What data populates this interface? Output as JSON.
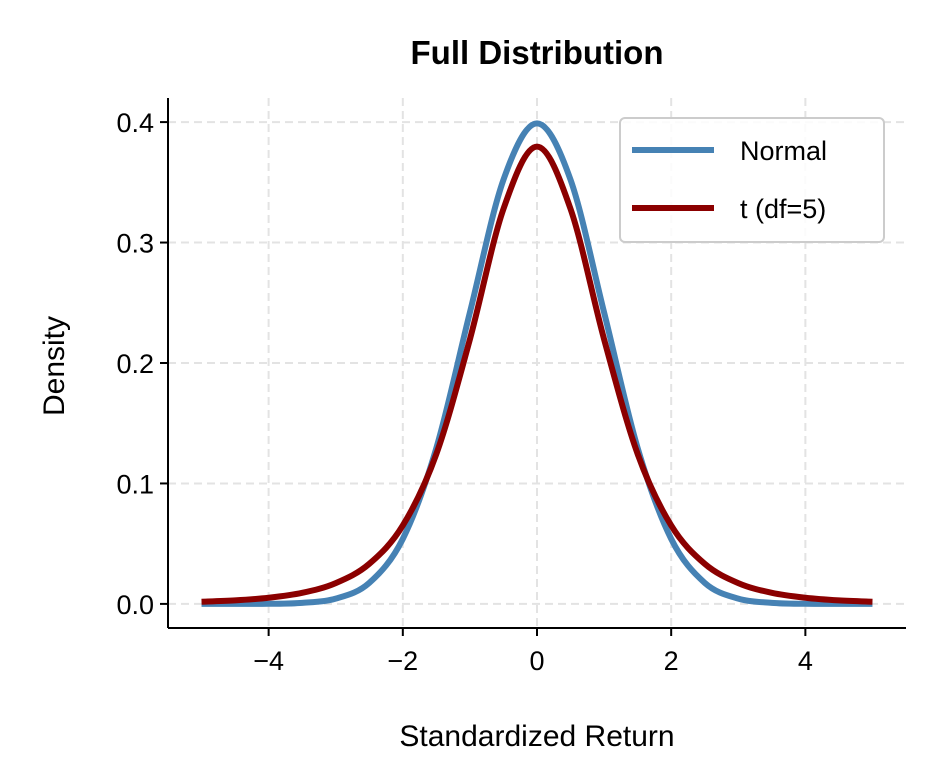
{
  "chart_data": {
    "type": "line",
    "title": "Full Distribution",
    "xlabel": "Standardized Return",
    "ylabel": "Density",
    "xlim": [
      -5.5,
      5.5
    ],
    "ylim": [
      -0.02,
      0.42
    ],
    "xticks": [
      -4,
      -2,
      0,
      2,
      4
    ],
    "xtick_labels": [
      "−4",
      "−2",
      "0",
      "2",
      "4"
    ],
    "yticks": [
      0.0,
      0.1,
      0.2,
      0.3,
      0.4
    ],
    "ytick_labels": [
      "0.0",
      "0.1",
      "0.2",
      "0.3",
      "0.4"
    ],
    "grid": true,
    "legend_position": "top-right",
    "x": [
      -5,
      -4.5,
      -4,
      -3.5,
      -3,
      -2.5,
      -2,
      -1.5,
      -1,
      -0.5,
      0,
      0.5,
      1,
      1.5,
      2,
      2.5,
      3,
      3.5,
      4,
      4.5,
      5
    ],
    "series": [
      {
        "name": "Normal",
        "color": "#4682b4",
        "values": [
          0.0,
          0.0,
          0.0001,
          0.0009,
          0.0044,
          0.0175,
          0.054,
          0.1295,
          0.242,
          0.3521,
          0.3989,
          0.3521,
          0.242,
          0.1295,
          0.054,
          0.0175,
          0.0044,
          0.0009,
          0.0001,
          0.0,
          0.0
        ]
      },
      {
        "name": "t (df=5)",
        "color": "#8b0000",
        "values": [
          0.0018,
          0.0029,
          0.0051,
          0.0092,
          0.0173,
          0.0333,
          0.0651,
          0.1245,
          0.2197,
          0.3279,
          0.3796,
          0.3279,
          0.2197,
          0.1245,
          0.0651,
          0.0333,
          0.0173,
          0.0092,
          0.0051,
          0.0029,
          0.0018
        ]
      }
    ]
  }
}
